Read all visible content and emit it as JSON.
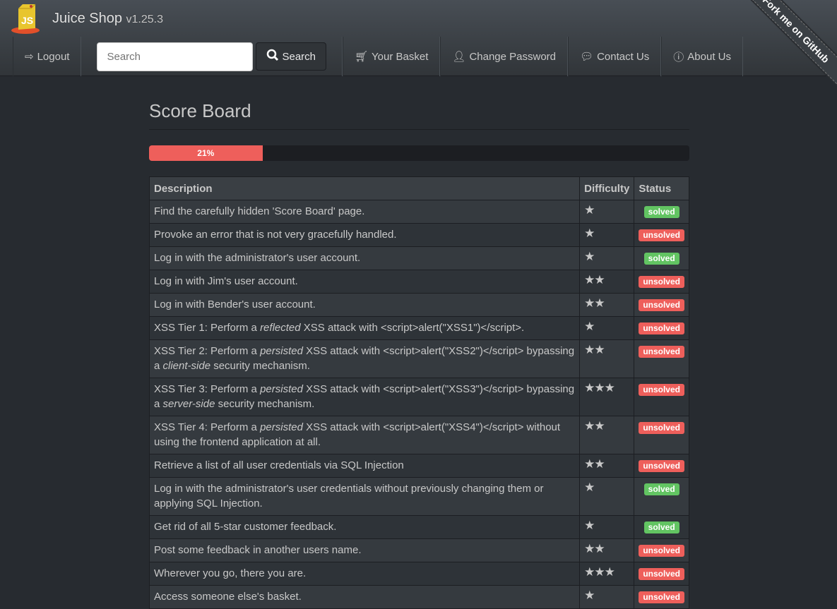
{
  "header": {
    "app_name": "Juice Shop",
    "version": "v1.25.3",
    "ribbon": "Fork me on GitHub"
  },
  "nav": {
    "logout": "Logout",
    "search_placeholder": "Search",
    "search_button": "Search",
    "basket": "Your Basket",
    "change_password": "Change Password",
    "contact": "Contact Us",
    "about": "About Us"
  },
  "colors": {
    "solved": "#62c462",
    "unsolved": "#ee5f5b",
    "progress": "#ee5f5b"
  },
  "page": {
    "title": "Score Board",
    "progress_label": "21%",
    "progress_percent": 21
  },
  "table": {
    "headers": [
      "Description",
      "Difficulty",
      "Status"
    ],
    "rows": [
      {
        "parts": [
          {
            "t": "Find the carefully hidden 'Score Board' page."
          }
        ],
        "difficulty": 1,
        "status": "solved"
      },
      {
        "parts": [
          {
            "t": "Provoke an error that is not very gracefully handled."
          }
        ],
        "difficulty": 1,
        "status": "unsolved"
      },
      {
        "parts": [
          {
            "t": "Log in with the administrator's user account."
          }
        ],
        "difficulty": 1,
        "status": "solved"
      },
      {
        "parts": [
          {
            "t": "Log in with Jim's user account."
          }
        ],
        "difficulty": 2,
        "status": "unsolved"
      },
      {
        "parts": [
          {
            "t": "Log in with Bender's user account."
          }
        ],
        "difficulty": 2,
        "status": "unsolved"
      },
      {
        "parts": [
          {
            "t": "XSS Tier 1: Perform a "
          },
          {
            "t": "reflected",
            "em": true
          },
          {
            "t": " XSS attack with <script>alert(\"XSS1\")</script>."
          }
        ],
        "difficulty": 1,
        "status": "unsolved"
      },
      {
        "parts": [
          {
            "t": "XSS Tier 2: Perform a "
          },
          {
            "t": "persisted",
            "em": true
          },
          {
            "t": " XSS attack with <script>alert(\"XSS2\")</script> bypassing a "
          },
          {
            "t": "client-side",
            "em": true
          },
          {
            "t": " security mechanism."
          }
        ],
        "difficulty": 2,
        "status": "unsolved"
      },
      {
        "parts": [
          {
            "t": "XSS Tier 3: Perform a "
          },
          {
            "t": "persisted",
            "em": true
          },
          {
            "t": " XSS attack with <script>alert(\"XSS3\")</script> bypassing a "
          },
          {
            "t": "server-side",
            "em": true
          },
          {
            "t": " security mechanism."
          }
        ],
        "difficulty": 3,
        "status": "unsolved"
      },
      {
        "parts": [
          {
            "t": "XSS Tier 4: Perform a "
          },
          {
            "t": "persisted",
            "em": true
          },
          {
            "t": " XSS attack with <script>alert(\"XSS4\")</script> without using the frontend application at all."
          }
        ],
        "difficulty": 2,
        "status": "unsolved"
      },
      {
        "parts": [
          {
            "t": "Retrieve a list of all user credentials via SQL Injection"
          }
        ],
        "difficulty": 2,
        "status": "unsolved"
      },
      {
        "parts": [
          {
            "t": "Log in with the administrator's user credentials without previously changing them or applying SQL Injection."
          }
        ],
        "difficulty": 1,
        "status": "solved"
      },
      {
        "parts": [
          {
            "t": "Get rid of all 5-star customer feedback."
          }
        ],
        "difficulty": 1,
        "status": "solved"
      },
      {
        "parts": [
          {
            "t": "Post some feedback in another users name."
          }
        ],
        "difficulty": 2,
        "status": "unsolved"
      },
      {
        "parts": [
          {
            "t": "Wherever you go, there you are."
          }
        ],
        "difficulty": 3,
        "status": "unsolved"
      },
      {
        "parts": [
          {
            "t": "Access someone else's basket."
          }
        ],
        "difficulty": 1,
        "status": "unsolved"
      }
    ]
  }
}
